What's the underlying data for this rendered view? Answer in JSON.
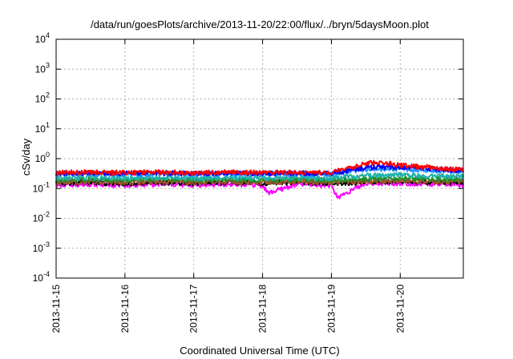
{
  "chart_data": {
    "type": "line",
    "title": "/data/run/goesPlots/archive/2013-11-20/22:00/flux/../bryn/5daysMoon.plot",
    "xlabel": "Coordinated Universal Time (UTC)",
    "ylabel": "cSv/day",
    "yscale": "log",
    "xlim": [
      "2013-11-15T00:00",
      "2013-11-20T22:00"
    ],
    "ylim": [
      0.0001,
      10000
    ],
    "grid": true,
    "x_ticks": [
      "2013-11-15",
      "2013-11-16",
      "2013-11-17",
      "2013-11-18",
      "2013-11-19",
      "2013-11-20"
    ],
    "y_ticks": [
      {
        "value": 0.0001,
        "base": "10",
        "exp": "-4"
      },
      {
        "value": 0.001,
        "base": "10",
        "exp": "-3"
      },
      {
        "value": 0.01,
        "base": "10",
        "exp": "-2"
      },
      {
        "value": 0.1,
        "base": "10",
        "exp": "-1"
      },
      {
        "value": 1,
        "base": "10",
        "exp": "0"
      },
      {
        "value": 10,
        "base": "10",
        "exp": "1"
      },
      {
        "value": 100,
        "base": "10",
        "exp": "2"
      },
      {
        "value": 1000,
        "base": "10",
        "exp": "3"
      },
      {
        "value": 10000,
        "base": "10",
        "exp": "4"
      }
    ],
    "series": [
      {
        "color": "#ff00ff",
        "x": [
          "2013-11-15T00:00",
          "2013-11-15T12:00",
          "2013-11-16T00:00",
          "2013-11-16T12:00",
          "2013-11-17T00:00",
          "2013-11-17T12:00",
          "2013-11-18T00:00",
          "2013-11-18T02:00",
          "2013-11-18T12:00",
          "2013-11-19T00:00",
          "2013-11-19T02:00",
          "2013-11-19T12:00",
          "2013-11-20T00:00",
          "2013-11-20T12:00",
          "2013-11-20T22:00"
        ],
        "y": [
          0.13,
          0.14,
          0.13,
          0.14,
          0.13,
          0.14,
          0.13,
          0.07,
          0.14,
          0.13,
          0.05,
          0.15,
          0.15,
          0.14,
          0.13
        ]
      },
      {
        "color": "#000000",
        "x": [
          "2013-11-15T00:00",
          "2013-11-15T12:00",
          "2013-11-16T00:00",
          "2013-11-16T12:00",
          "2013-11-17T00:00",
          "2013-11-17T12:00",
          "2013-11-18T00:00",
          "2013-11-18T12:00",
          "2013-11-19T00:00",
          "2013-11-19T12:00",
          "2013-11-20T00:00",
          "2013-11-20T12:00",
          "2013-11-20T22:00"
        ],
        "y": [
          0.15,
          0.16,
          0.15,
          0.16,
          0.15,
          0.16,
          0.15,
          0.16,
          0.15,
          0.16,
          0.17,
          0.16,
          0.16
        ]
      },
      {
        "color": "#a0522d",
        "x": [
          "2013-11-15T00:00",
          "2013-11-15T12:00",
          "2013-11-16T00:00",
          "2013-11-16T12:00",
          "2013-11-17T00:00",
          "2013-11-17T12:00",
          "2013-11-18T00:00",
          "2013-11-18T12:00",
          "2013-11-19T00:00",
          "2013-11-19T12:00",
          "2013-11-20T00:00",
          "2013-11-20T12:00",
          "2013-11-20T22:00"
        ],
        "y": [
          0.16,
          0.17,
          0.16,
          0.17,
          0.16,
          0.17,
          0.16,
          0.17,
          0.16,
          0.17,
          0.18,
          0.17,
          0.17
        ]
      },
      {
        "color": "#228b22",
        "x": [
          "2013-11-15T00:00",
          "2013-11-15T12:00",
          "2013-11-16T00:00",
          "2013-11-16T12:00",
          "2013-11-17T00:00",
          "2013-11-17T12:00",
          "2013-11-18T00:00",
          "2013-11-18T12:00",
          "2013-11-19T00:00",
          "2013-11-19T12:00",
          "2013-11-20T00:00",
          "2013-11-20T12:00",
          "2013-11-20T22:00"
        ],
        "y": [
          0.19,
          0.2,
          0.19,
          0.2,
          0.19,
          0.2,
          0.19,
          0.2,
          0.19,
          0.21,
          0.22,
          0.21,
          0.2
        ]
      },
      {
        "color": "#20b2aa",
        "x": [
          "2013-11-15T00:00",
          "2013-11-15T12:00",
          "2013-11-16T00:00",
          "2013-11-16T12:00",
          "2013-11-17T00:00",
          "2013-11-17T12:00",
          "2013-11-18T00:00",
          "2013-11-18T12:00",
          "2013-11-19T00:00",
          "2013-11-19T12:00",
          "2013-11-20T00:00",
          "2013-11-20T12:00",
          "2013-11-20T22:00"
        ],
        "y": [
          0.22,
          0.23,
          0.22,
          0.23,
          0.22,
          0.23,
          0.22,
          0.23,
          0.22,
          0.27,
          0.28,
          0.26,
          0.25
        ]
      },
      {
        "color": "#1e90ff",
        "x": [
          "2013-11-15T00:00",
          "2013-11-15T12:00",
          "2013-11-16T00:00",
          "2013-11-16T12:00",
          "2013-11-17T00:00",
          "2013-11-17T12:00",
          "2013-11-18T00:00",
          "2013-11-18T12:00",
          "2013-11-19T00:00",
          "2013-11-19T12:00",
          "2013-11-20T00:00",
          "2013-11-20T12:00",
          "2013-11-20T22:00"
        ],
        "y": [
          0.3,
          0.31,
          0.3,
          0.31,
          0.3,
          0.31,
          0.3,
          0.31,
          0.3,
          0.45,
          0.45,
          0.4,
          0.38
        ]
      },
      {
        "color": "#0000ff",
        "x": [
          "2013-11-15T00:00",
          "2013-11-15T12:00",
          "2013-11-16T00:00",
          "2013-11-16T12:00",
          "2013-11-17T00:00",
          "2013-11-17T12:00",
          "2013-11-18T00:00",
          "2013-11-18T12:00",
          "2013-11-19T00:00",
          "2013-11-19T12:00",
          "2013-11-20T00:00",
          "2013-11-20T12:00",
          "2013-11-20T22:00"
        ],
        "y": [
          0.32,
          0.33,
          0.32,
          0.33,
          0.32,
          0.33,
          0.32,
          0.33,
          0.32,
          0.5,
          0.52,
          0.45,
          0.4
        ]
      },
      {
        "color": "#ff0000",
        "x": [
          "2013-11-15T00:00",
          "2013-11-15T12:00",
          "2013-11-16T00:00",
          "2013-11-16T12:00",
          "2013-11-17T00:00",
          "2013-11-17T12:00",
          "2013-11-18T00:00",
          "2013-11-18T12:00",
          "2013-11-19T00:00",
          "2013-11-19T12:00",
          "2013-11-19T18:00",
          "2013-11-20T00:00",
          "2013-11-20T12:00",
          "2013-11-20T22:00"
        ],
        "y": [
          0.34,
          0.35,
          0.34,
          0.35,
          0.34,
          0.35,
          0.34,
          0.35,
          0.34,
          0.7,
          0.72,
          0.6,
          0.5,
          0.42
        ]
      }
    ]
  }
}
